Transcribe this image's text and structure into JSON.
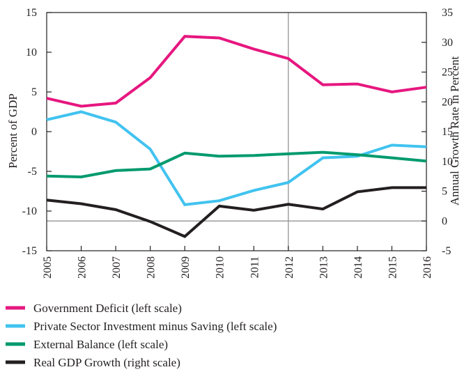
{
  "chart_data": {
    "type": "line",
    "x": [
      "2005",
      "2006",
      "2007",
      "2008",
      "2009",
      "2010",
      "2011",
      "2012",
      "2013",
      "2014",
      "2015",
      "2016"
    ],
    "ylabel": "Percent of GDP",
    "ylabel_right": "Annual Growth Rate in Percent",
    "ylim": [
      -15,
      15
    ],
    "ylim_right": [
      -5,
      35
    ],
    "yticks": [
      -15,
      -10,
      -5,
      0,
      5,
      10,
      15
    ],
    "yticks_right": [
      -5,
      0,
      5,
      10,
      15,
      20,
      25,
      30,
      35
    ],
    "grid": false,
    "reference_lines": {
      "vertical_x": "2012",
      "horizontal_right_y": 0
    },
    "legend_position": "bottom",
    "series": [
      {
        "name": "Government Deficit (left scale)",
        "axis": "left",
        "color": "#e6177f",
        "values": [
          4.2,
          3.2,
          3.6,
          6.8,
          12.0,
          11.8,
          10.4,
          9.2,
          5.9,
          6.0,
          5.0,
          5.6
        ]
      },
      {
        "name": "Private Sector Investment minus Saving (left scale)",
        "axis": "left",
        "color": "#41c3ef",
        "values": [
          1.5,
          2.5,
          1.2,
          -2.2,
          -9.2,
          -8.7,
          -7.4,
          -6.4,
          -3.3,
          -3.1,
          -1.7,
          -1.9
        ]
      },
      {
        "name": "External Balance (left scale)",
        "axis": "left",
        "color": "#009a6e",
        "values": [
          -5.6,
          -5.7,
          -4.9,
          -4.7,
          -2.7,
          -3.1,
          -3.0,
          -2.8,
          -2.6,
          -2.9,
          -3.3,
          -3.7
        ]
      },
      {
        "name": "Real GDP Growth (right scale)",
        "axis": "right",
        "color": "#231f20",
        "values": [
          3.5,
          2.9,
          1.9,
          -0.1,
          -2.6,
          2.5,
          1.8,
          2.8,
          2.0,
          4.9,
          5.6,
          5.6
        ]
      }
    ]
  }
}
